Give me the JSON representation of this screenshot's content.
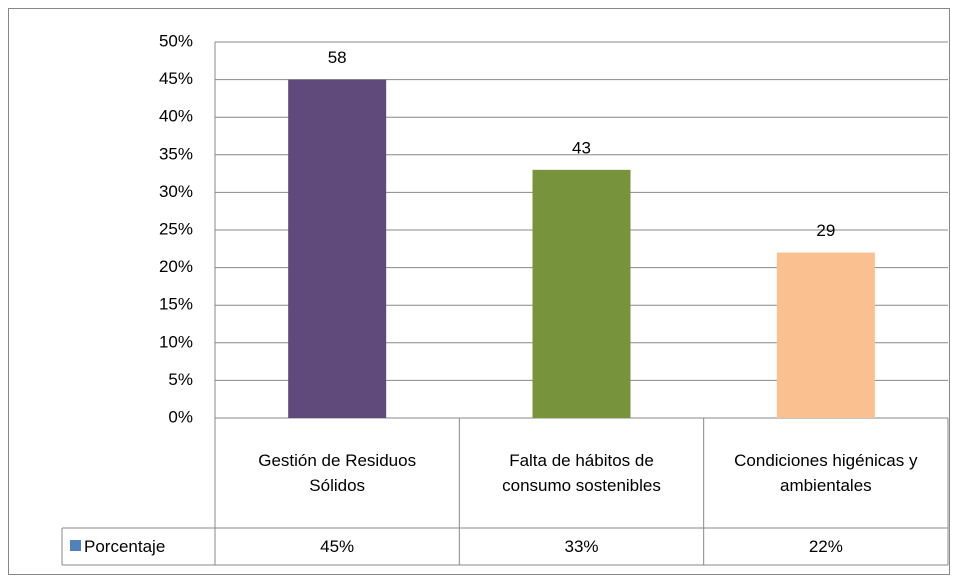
{
  "chart_data": {
    "type": "bar",
    "categories": [
      "Gestión de Residuos Sólidos",
      "Falta de hábitos de consumo sostenibles",
      "Condiciones higénicas y ambientales"
    ],
    "series": [
      {
        "name": "Porcentaje",
        "color": "#4f81bd",
        "bar_colors": [
          "#604a7b",
          "#77933c",
          "#fac090"
        ],
        "values": [
          45,
          33,
          22
        ],
        "value_labels": [
          "45%",
          "33%",
          "22%"
        ],
        "data_labels": [
          58,
          43,
          29
        ]
      }
    ],
    "ylim": [
      0,
      50
    ],
    "yticks": [
      {
        "value": 0,
        "label": "0%"
      },
      {
        "value": 5,
        "label": "5%"
      },
      {
        "value": 10,
        "label": "10%"
      },
      {
        "value": 15,
        "label": "15%"
      },
      {
        "value": 20,
        "label": "20%"
      },
      {
        "value": 25,
        "label": "25%"
      },
      {
        "value": 30,
        "label": "30%"
      },
      {
        "value": 35,
        "label": "35%"
      },
      {
        "value": 40,
        "label": "40%"
      },
      {
        "value": 45,
        "label": "45%"
      },
      {
        "value": 50,
        "label": "50%"
      }
    ],
    "grid": true,
    "legend": "bottom-left"
  }
}
